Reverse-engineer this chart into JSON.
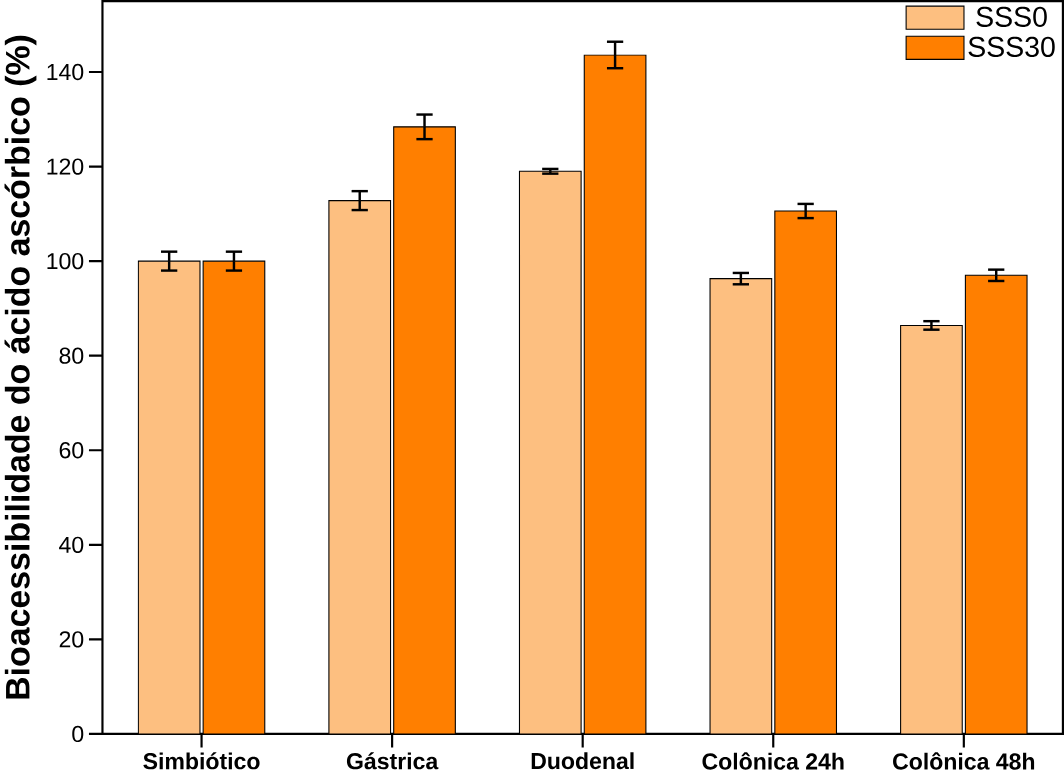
{
  "chart_data": {
    "type": "bar",
    "ylabel": "Bioacessibilidade do ácido ascórbico (%)",
    "categories": [
      "Simbiótico",
      "Gástrica",
      "Duodenal",
      "Colônica 24h",
      "Colônica 48h"
    ],
    "series": [
      {
        "name": "SSS0",
        "color": "#fdbf80",
        "values": [
          100,
          112.8,
          119,
          96.3,
          86.4
        ],
        "errors": [
          2,
          2,
          0.5,
          1.2,
          0.9
        ]
      },
      {
        "name": "SSS30",
        "color": "#ff7f00",
        "values": [
          100,
          128.4,
          143.6,
          110.6,
          97
        ],
        "errors": [
          2,
          2.6,
          2.8,
          1.5,
          1.2
        ]
      }
    ],
    "ylim": [
      0,
      155
    ],
    "yticks": [
      0,
      20,
      40,
      60,
      80,
      100,
      120,
      140
    ],
    "legend": "top right",
    "grid": false
  }
}
